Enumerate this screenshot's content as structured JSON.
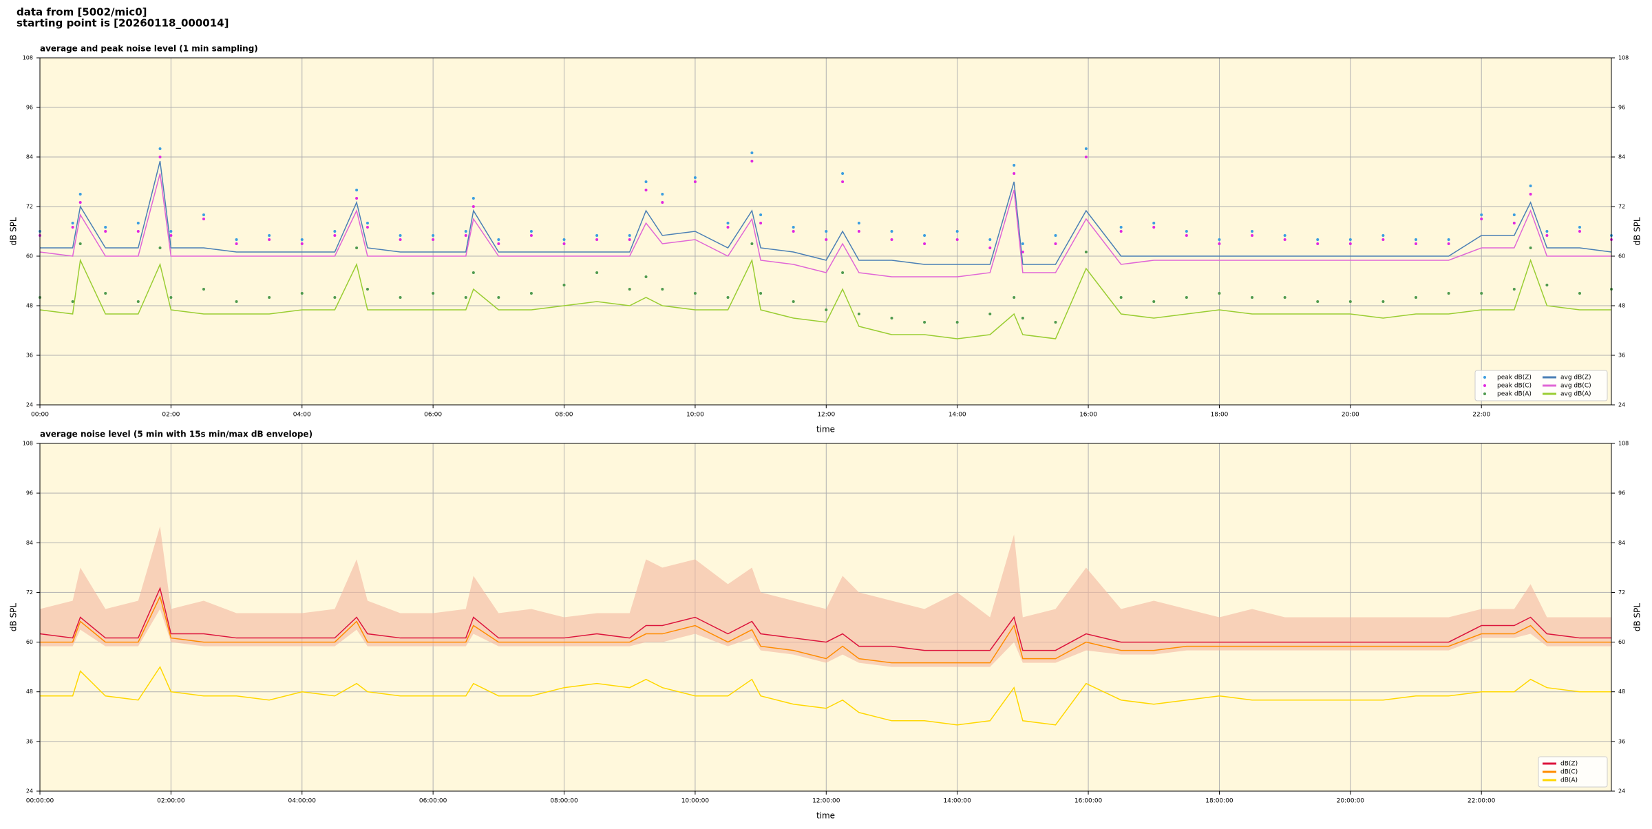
{
  "header": {
    "line1": "data from [5002/mic0]",
    "line2": "starting point is [20260118_000014]"
  },
  "chart_data": [
    {
      "type": "line",
      "title": "average and peak noise level (1 min sampling)",
      "xlabel": "time",
      "ylabel": "dB SPL",
      "background": "#fff8dc",
      "grid": true,
      "legend": "lower right",
      "xlim": [
        0,
        1439
      ],
      "ylim": [
        24,
        108
      ],
      "xticks": [
        {
          "value": 0,
          "label": "00:00"
        },
        {
          "value": 120,
          "label": "02:00"
        },
        {
          "value": 240,
          "label": "04:00"
        },
        {
          "value": 360,
          "label": "06:00"
        },
        {
          "value": 480,
          "label": "08:00"
        },
        {
          "value": 600,
          "label": "10:00"
        },
        {
          "value": 720,
          "label": "12:00"
        },
        {
          "value": 840,
          "label": "14:00"
        },
        {
          "value": 960,
          "label": "16:00"
        },
        {
          "value": 1080,
          "label": "18:00"
        },
        {
          "value": 1200,
          "label": "20:00"
        },
        {
          "value": 1320,
          "label": "22:00"
        }
      ],
      "yticks": [
        24,
        36,
        48,
        60,
        72,
        84,
        96,
        108
      ],
      "x": [
        0,
        30,
        37,
        60,
        90,
        110,
        120,
        150,
        180,
        210,
        240,
        270,
        290,
        300,
        330,
        360,
        390,
        397,
        420,
        450,
        480,
        510,
        540,
        555,
        570,
        600,
        630,
        652,
        660,
        690,
        720,
        735,
        750,
        780,
        810,
        840,
        870,
        892,
        900,
        930,
        958,
        990,
        1020,
        1050,
        1080,
        1110,
        1140,
        1170,
        1200,
        1230,
        1260,
        1290,
        1320,
        1350,
        1365,
        1380,
        1410,
        1439
      ],
      "series": [
        {
          "name": "peak dB(Z)",
          "type": "scatter",
          "color": "#3a9de0",
          "values": [
            66,
            68,
            75,
            67,
            68,
            86,
            66,
            70,
            64,
            65,
            64,
            66,
            76,
            68,
            65,
            65,
            66,
            74,
            64,
            66,
            64,
            65,
            65,
            78,
            75,
            79,
            68,
            85,
            70,
            67,
            66,
            80,
            68,
            66,
            65,
            66,
            64,
            82,
            63,
            65,
            86,
            67,
            68,
            66,
            64,
            66,
            65,
            64,
            64,
            65,
            64,
            64,
            70,
            70,
            77,
            66,
            67,
            65
          ]
        },
        {
          "name": "peak dB(C)",
          "type": "scatter",
          "color": "#e028e0",
          "values": [
            65,
            67,
            73,
            66,
            66,
            84,
            65,
            69,
            63,
            64,
            63,
            65,
            74,
            67,
            64,
            64,
            65,
            72,
            63,
            65,
            63,
            64,
            64,
            76,
            73,
            78,
            67,
            83,
            68,
            66,
            64,
            78,
            66,
            64,
            63,
            64,
            62,
            80,
            61,
            63,
            84,
            66,
            67,
            65,
            63,
            65,
            64,
            63,
            63,
            64,
            63,
            63,
            69,
            68,
            75,
            65,
            66,
            64
          ]
        },
        {
          "name": "peak dB(A)",
          "type": "scatter",
          "color": "#4f9a4f",
          "values": [
            50,
            49,
            63,
            51,
            49,
            62,
            50,
            52,
            49,
            50,
            51,
            50,
            62,
            52,
            50,
            51,
            50,
            56,
            50,
            51,
            53,
            56,
            52,
            55,
            52,
            51,
            50,
            63,
            51,
            49,
            47,
            56,
            46,
            45,
            44,
            44,
            46,
            50,
            45,
            44,
            61,
            50,
            49,
            50,
            51,
            50,
            50,
            49,
            49,
            49,
            50,
            51,
            51,
            52,
            62,
            53,
            51,
            52
          ]
        },
        {
          "name": "avg dB(Z)",
          "type": "line",
          "color": "#4a7fb5",
          "values": [
            62,
            62,
            72,
            62,
            62,
            83,
            62,
            62,
            61,
            61,
            61,
            61,
            73,
            62,
            61,
            61,
            61,
            71,
            61,
            61,
            61,
            61,
            61,
            71,
            65,
            66,
            62,
            71,
            62,
            61,
            59,
            66,
            59,
            59,
            58,
            58,
            58,
            78,
            58,
            58,
            71,
            60,
            60,
            60,
            60,
            60,
            60,
            60,
            60,
            60,
            60,
            60,
            65,
            65,
            73,
            62,
            62,
            61
          ]
        },
        {
          "name": "avg dB(C)",
          "type": "line",
          "color": "#e066d6",
          "values": [
            61,
            60,
            70,
            60,
            60,
            80,
            60,
            60,
            60,
            60,
            60,
            60,
            71,
            60,
            60,
            60,
            60,
            69,
            60,
            60,
            60,
            60,
            60,
            68,
            63,
            64,
            60,
            69,
            59,
            58,
            56,
            63,
            56,
            55,
            55,
            55,
            56,
            76,
            56,
            56,
            69,
            58,
            59,
            59,
            59,
            59,
            59,
            59,
            59,
            59,
            59,
            59,
            62,
            62,
            71,
            60,
            60,
            60
          ]
        },
        {
          "name": "avg dB(A)",
          "type": "line",
          "color": "#9acd32",
          "values": [
            47,
            46,
            59,
            46,
            46,
            58,
            47,
            46,
            46,
            46,
            47,
            47,
            58,
            47,
            47,
            47,
            47,
            52,
            47,
            47,
            48,
            49,
            48,
            50,
            48,
            47,
            47,
            59,
            47,
            45,
            44,
            52,
            43,
            41,
            41,
            40,
            41,
            46,
            41,
            40,
            57,
            46,
            45,
            46,
            47,
            46,
            46,
            46,
            46,
            45,
            46,
            46,
            47,
            47,
            59,
            48,
            47,
            47
          ]
        }
      ]
    },
    {
      "type": "line",
      "title": "average noise level (5 min with 15s min/max dB envelope)",
      "xlabel": "time",
      "ylabel": "dB SPL",
      "background": "#fff8dc",
      "grid": true,
      "legend": "lower right",
      "xlim": [
        0,
        1439
      ],
      "ylim": [
        24,
        108
      ],
      "xticks": [
        {
          "value": 0,
          "label": "00:00:00"
        },
        {
          "value": 120,
          "label": "02:00:00"
        },
        {
          "value": 240,
          "label": "04:00:00"
        },
        {
          "value": 360,
          "label": "06:00:00"
        },
        {
          "value": 480,
          "label": "08:00:00"
        },
        {
          "value": 600,
          "label": "10:00:00"
        },
        {
          "value": 720,
          "label": "12:00:00"
        },
        {
          "value": 840,
          "label": "14:00:00"
        },
        {
          "value": 960,
          "label": "16:00:00"
        },
        {
          "value": 1080,
          "label": "18:00:00"
        },
        {
          "value": 1200,
          "label": "20:00:00"
        },
        {
          "value": 1320,
          "label": "22:00:00"
        }
      ],
      "yticks": [
        24,
        36,
        48,
        60,
        72,
        84,
        96,
        108
      ],
      "x": [
        0,
        30,
        37,
        60,
        90,
        110,
        120,
        150,
        180,
        210,
        240,
        270,
        290,
        300,
        330,
        360,
        390,
        397,
        420,
        450,
        480,
        510,
        540,
        555,
        570,
        600,
        630,
        652,
        660,
        690,
        720,
        735,
        750,
        780,
        810,
        840,
        870,
        892,
        900,
        930,
        958,
        990,
        1020,
        1050,
        1080,
        1110,
        1140,
        1170,
        1200,
        1230,
        1260,
        1290,
        1320,
        1350,
        1365,
        1380,
        1410,
        1439
      ],
      "envelope": {
        "color": "#f4b8a0",
        "upper": [
          68,
          70,
          78,
          68,
          70,
          88,
          68,
          70,
          67,
          67,
          67,
          68,
          80,
          70,
          67,
          67,
          68,
          76,
          67,
          68,
          66,
          67,
          67,
          80,
          78,
          80,
          74,
          78,
          72,
          70,
          68,
          76,
          72,
          70,
          68,
          72,
          66,
          86,
          66,
          68,
          78,
          68,
          70,
          68,
          66,
          68,
          66,
          66,
          66,
          66,
          66,
          66,
          68,
          68,
          74,
          66,
          66,
          66
        ],
        "lower": [
          59,
          59,
          63,
          59,
          59,
          68,
          60,
          59,
          59,
          59,
          59,
          59,
          63,
          59,
          59,
          59,
          59,
          62,
          59,
          59,
          59,
          59,
          59,
          60,
          60,
          62,
          59,
          61,
          58,
          57,
          55,
          57,
          55,
          54,
          54,
          54,
          54,
          60,
          55,
          55,
          58,
          57,
          57,
          58,
          58,
          58,
          58,
          58,
          58,
          58,
          58,
          58,
          61,
          61,
          62,
          59,
          59,
          59
        ]
      },
      "series": [
        {
          "name": "dB(Z)",
          "type": "line",
          "color": "#dc143c",
          "values": [
            62,
            61,
            66,
            61,
            61,
            73,
            62,
            62,
            61,
            61,
            61,
            61,
            66,
            62,
            61,
            61,
            61,
            66,
            61,
            61,
            61,
            62,
            61,
            64,
            64,
            66,
            62,
            65,
            62,
            61,
            60,
            62,
            59,
            59,
            58,
            58,
            58,
            66,
            58,
            58,
            62,
            60,
            60,
            60,
            60,
            60,
            60,
            60,
            60,
            60,
            60,
            60,
            64,
            64,
            66,
            62,
            61,
            61
          ]
        },
        {
          "name": "dB(C)",
          "type": "line",
          "color": "#ff8c00",
          "values": [
            60,
            60,
            65,
            60,
            60,
            71,
            61,
            60,
            60,
            60,
            60,
            60,
            65,
            60,
            60,
            60,
            60,
            64,
            60,
            60,
            60,
            60,
            60,
            62,
            62,
            64,
            60,
            63,
            59,
            58,
            56,
            59,
            56,
            55,
            55,
            55,
            55,
            64,
            56,
            56,
            60,
            58,
            58,
            59,
            59,
            59,
            59,
            59,
            59,
            59,
            59,
            59,
            62,
            62,
            64,
            60,
            60,
            60
          ]
        },
        {
          "name": "dB(A)",
          "type": "line",
          "color": "#ffd700",
          "values": [
            47,
            47,
            53,
            47,
            46,
            54,
            48,
            47,
            47,
            46,
            48,
            47,
            50,
            48,
            47,
            47,
            47,
            50,
            47,
            47,
            49,
            50,
            49,
            51,
            49,
            47,
            47,
            51,
            47,
            45,
            44,
            46,
            43,
            41,
            41,
            40,
            41,
            49,
            41,
            40,
            50,
            46,
            45,
            46,
            47,
            46,
            46,
            46,
            46,
            46,
            47,
            47,
            48,
            48,
            51,
            49,
            48,
            48
          ]
        }
      ]
    }
  ]
}
